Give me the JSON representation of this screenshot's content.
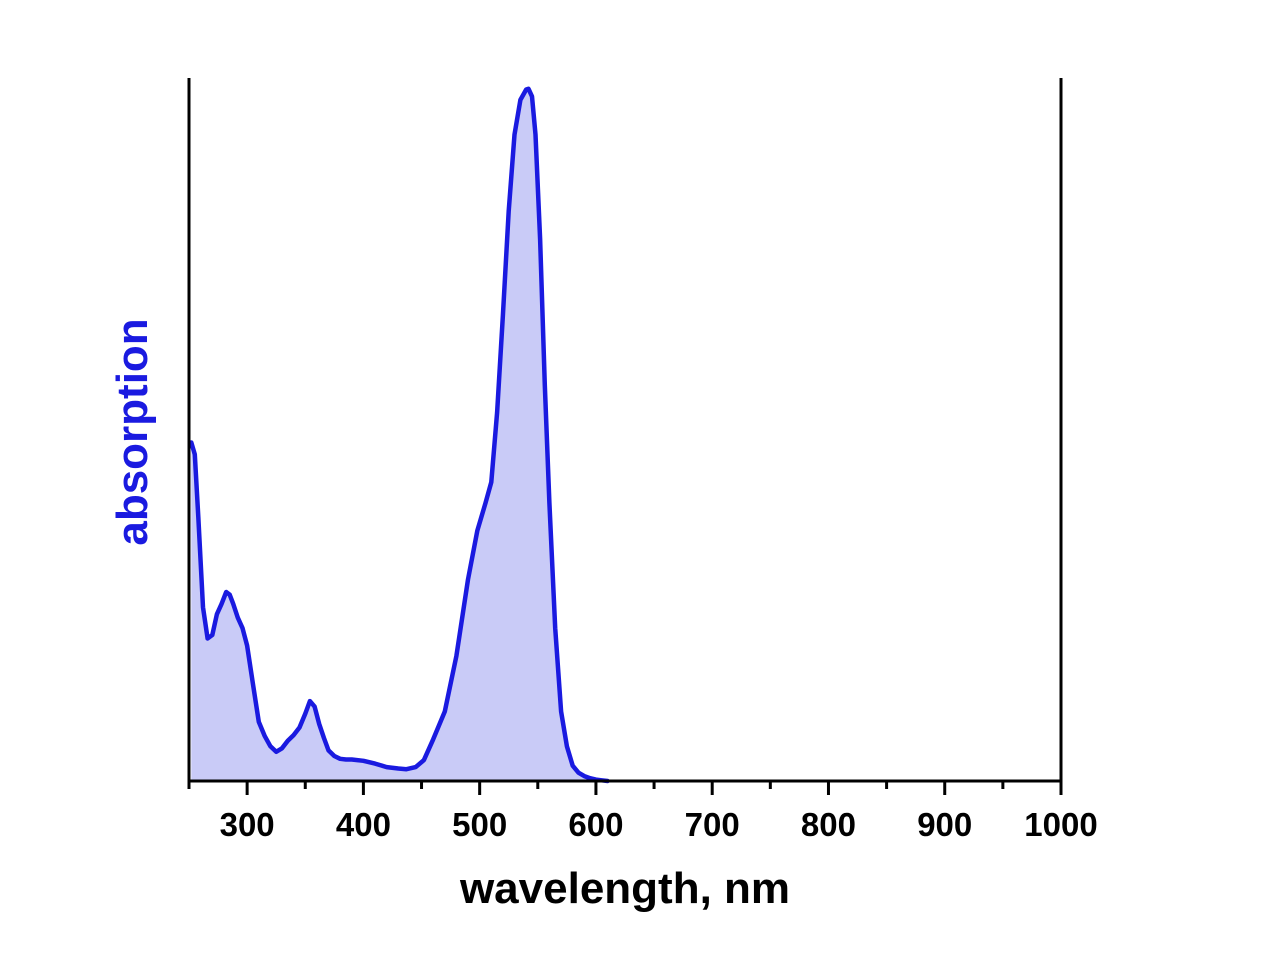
{
  "chart_data": {
    "type": "area",
    "xlabel": "wavelength, nm",
    "ylabel": "absorption",
    "xlim": [
      250,
      1000
    ],
    "ylim": [
      0,
      1.0
    ],
    "x_ticks": [
      300,
      400,
      500,
      600,
      700,
      800,
      900,
      1000
    ],
    "y_ticks_visible": false,
    "grid": false,
    "legend": "none",
    "colors": {
      "line": "#1a1ae0",
      "fill": "#c9cbf7",
      "ylabel": "#1a1ae0",
      "axis": "#000000"
    },
    "series": [
      {
        "x": [
          252,
          255,
          258,
          262,
          266,
          270,
          274,
          278,
          282,
          285,
          288,
          292,
          296,
          300,
          305,
          310,
          315,
          320,
          325,
          330,
          335,
          340,
          345,
          350,
          354,
          358,
          362,
          366,
          370,
          375,
          380,
          385,
          390,
          400,
          410,
          420,
          430,
          437,
          445,
          452,
          460,
          470,
          480,
          490,
          498,
          505,
          510,
          515,
          520,
          525,
          530,
          535,
          540,
          542,
          545,
          548,
          552,
          556,
          560,
          565,
          570,
          575,
          580,
          585,
          590,
          595,
          600,
          605,
          610,
          620,
          650,
          700,
          800,
          900,
          1000
        ],
        "y": [
          0.487,
          0.47,
          0.38,
          0.25,
          0.205,
          0.21,
          0.24,
          0.255,
          0.272,
          0.268,
          0.255,
          0.235,
          0.22,
          0.195,
          0.14,
          0.085,
          0.065,
          0.05,
          0.042,
          0.047,
          0.058,
          0.066,
          0.077,
          0.097,
          0.115,
          0.107,
          0.082,
          0.062,
          0.044,
          0.036,
          0.032,
          0.031,
          0.031,
          0.029,
          0.025,
          0.02,
          0.018,
          0.017,
          0.02,
          0.03,
          0.06,
          0.1,
          0.18,
          0.29,
          0.36,
          0.4,
          0.43,
          0.53,
          0.67,
          0.82,
          0.93,
          0.98,
          0.995,
          0.996,
          0.985,
          0.93,
          0.78,
          0.57,
          0.4,
          0.22,
          0.1,
          0.05,
          0.022,
          0.012,
          0.007,
          0.004,
          0.002,
          0.001,
          0.0,
          0.0,
          0.0,
          0.0,
          0.0,
          0.0,
          0.0
        ]
      }
    ]
  }
}
